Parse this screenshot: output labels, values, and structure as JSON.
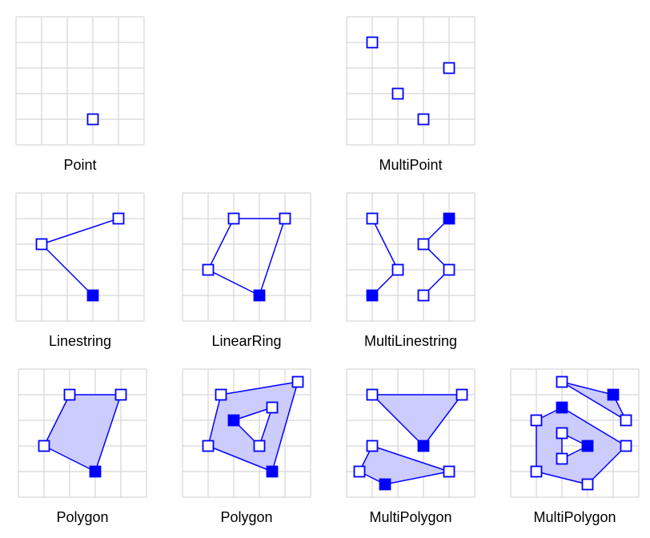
{
  "colors": {
    "grid": "#d8d8d8",
    "stroke": "#0000ff",
    "fill": "#ccccff",
    "vertex_fill": "#ffffff",
    "label": "#000000"
  },
  "panels": [
    {
      "id": "point",
      "label": "Point",
      "lines": [],
      "polygons": [],
      "vertices": [
        {
          "x": 3,
          "y": 4,
          "filled": false
        }
      ]
    },
    {
      "id": "multipoint",
      "label": "MultiPoint",
      "lines": [],
      "polygons": [],
      "vertices": [
        {
          "x": 1,
          "y": 1,
          "filled": false
        },
        {
          "x": 4,
          "y": 2,
          "filled": false
        },
        {
          "x": 2,
          "y": 3,
          "filled": false
        },
        {
          "x": 3,
          "y": 4,
          "filled": false
        }
      ]
    },
    {
      "id": "linestring",
      "label": "Linestring",
      "lines": [
        [
          [
            4,
            1
          ],
          [
            1,
            2
          ],
          [
            3,
            4
          ]
        ]
      ],
      "polygons": [],
      "vertices": [
        {
          "x": 4,
          "y": 1,
          "filled": false
        },
        {
          "x": 1,
          "y": 2,
          "filled": false
        },
        {
          "x": 3,
          "y": 4,
          "filled": true
        }
      ]
    },
    {
      "id": "linearring",
      "label": "LinearRing",
      "lines": [
        [
          [
            2,
            1
          ],
          [
            4,
            1
          ],
          [
            3,
            4
          ],
          [
            1,
            3
          ],
          [
            2,
            1
          ]
        ]
      ],
      "polygons": [],
      "vertices": [
        {
          "x": 2,
          "y": 1,
          "filled": false
        },
        {
          "x": 4,
          "y": 1,
          "filled": false
        },
        {
          "x": 1,
          "y": 3,
          "filled": false
        },
        {
          "x": 3,
          "y": 4,
          "filled": true
        }
      ]
    },
    {
      "id": "multilinestring",
      "label": "MultiLinestring",
      "lines": [
        [
          [
            1,
            1
          ],
          [
            2,
            3
          ],
          [
            1,
            4
          ]
        ],
        [
          [
            4,
            1
          ],
          [
            3,
            2
          ],
          [
            4,
            3
          ],
          [
            3,
            4
          ]
        ]
      ],
      "polygons": [],
      "vertices": [
        {
          "x": 1,
          "y": 1,
          "filled": false
        },
        {
          "x": 2,
          "y": 3,
          "filled": false
        },
        {
          "x": 1,
          "y": 4,
          "filled": true
        },
        {
          "x": 4,
          "y": 1,
          "filled": true
        },
        {
          "x": 3,
          "y": 2,
          "filled": false
        },
        {
          "x": 4,
          "y": 3,
          "filled": false
        },
        {
          "x": 3,
          "y": 4,
          "filled": false
        }
      ]
    },
    {
      "id": "polygon",
      "label": "Polygon",
      "lines": [],
      "polygons": [
        {
          "outer": [
            [
              2,
              1
            ],
            [
              4,
              1
            ],
            [
              3,
              4
            ],
            [
              1,
              3
            ]
          ],
          "holes": []
        }
      ],
      "vertices": [
        {
          "x": 2,
          "y": 1,
          "filled": false
        },
        {
          "x": 4,
          "y": 1,
          "filled": false
        },
        {
          "x": 1,
          "y": 3,
          "filled": false
        },
        {
          "x": 3,
          "y": 4,
          "filled": true
        }
      ]
    },
    {
      "id": "polygon-with-hole",
      "label": "Polygon",
      "lines": [],
      "polygons": [
        {
          "outer": [
            [
              1.5,
              1
            ],
            [
              4.5,
              0.5
            ],
            [
              3.5,
              4
            ],
            [
              1,
              3
            ]
          ],
          "holes": [
            [
              [
                2,
                2
              ],
              [
                3.5,
                1.5
              ],
              [
                3,
                3
              ]
            ]
          ]
        }
      ],
      "vertices": [
        {
          "x": 1.5,
          "y": 1,
          "filled": false
        },
        {
          "x": 4.5,
          "y": 0.5,
          "filled": false
        },
        {
          "x": 1,
          "y": 3,
          "filled": false
        },
        {
          "x": 3.5,
          "y": 4,
          "filled": true
        },
        {
          "x": 2,
          "y": 2,
          "filled": true
        },
        {
          "x": 3.5,
          "y": 1.5,
          "filled": false
        },
        {
          "x": 3,
          "y": 3,
          "filled": false
        }
      ]
    },
    {
      "id": "multipolygon",
      "label": "MultiPolygon",
      "lines": [],
      "polygons": [
        {
          "outer": [
            [
              1,
              1
            ],
            [
              4.5,
              1
            ],
            [
              3,
              3
            ]
          ],
          "holes": []
        },
        {
          "outer": [
            [
              1,
              3
            ],
            [
              4,
              4
            ],
            [
              1.5,
              4.5
            ],
            [
              0.5,
              4
            ]
          ],
          "holes": []
        }
      ],
      "vertices": [
        {
          "x": 1,
          "y": 1,
          "filled": false
        },
        {
          "x": 4.5,
          "y": 1,
          "filled": false
        },
        {
          "x": 3,
          "y": 3,
          "filled": true
        },
        {
          "x": 1,
          "y": 3,
          "filled": false
        },
        {
          "x": 4,
          "y": 4,
          "filled": false
        },
        {
          "x": 0.5,
          "y": 4,
          "filled": false
        },
        {
          "x": 1.5,
          "y": 4.5,
          "filled": true
        }
      ]
    },
    {
      "id": "multipolygon-2",
      "label": "MultiPolygon",
      "lines": [],
      "polygons": [
        {
          "outer": [
            [
              2,
              0.5
            ],
            [
              4,
              1
            ],
            [
              4.5,
              2
            ]
          ],
          "holes": []
        },
        {
          "outer": [
            [
              2,
              1.5
            ],
            [
              4.5,
              3
            ],
            [
              3,
              4.5
            ],
            [
              1,
              4
            ],
            [
              1,
              2
            ]
          ],
          "holes": [
            [
              [
                2,
                2.5
              ],
              [
                3,
                3
              ],
              [
                2,
                3.5
              ]
            ]
          ]
        }
      ],
      "vertices": [
        {
          "x": 2,
          "y": 0.5,
          "filled": false
        },
        {
          "x": 4,
          "y": 1,
          "filled": true
        },
        {
          "x": 4.5,
          "y": 2,
          "filled": false
        },
        {
          "x": 2,
          "y": 1.5,
          "filled": true
        },
        {
          "x": 4.5,
          "y": 3,
          "filled": false
        },
        {
          "x": 3,
          "y": 4.5,
          "filled": false
        },
        {
          "x": 1,
          "y": 4,
          "filled": false
        },
        {
          "x": 1,
          "y": 2,
          "filled": false
        },
        {
          "x": 2,
          "y": 2.5,
          "filled": false
        },
        {
          "x": 3,
          "y": 3,
          "filled": true
        },
        {
          "x": 2,
          "y": 3.5,
          "filled": false
        }
      ]
    }
  ]
}
